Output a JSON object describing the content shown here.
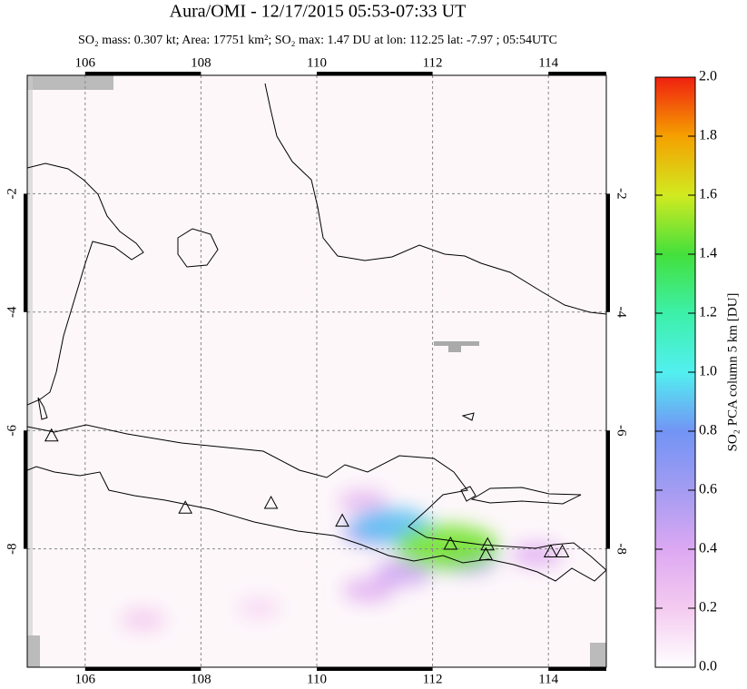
{
  "chart_data": {
    "type": "map",
    "title": "Aura/OMI - 12/17/2015 05:53-07:33 UT",
    "subtitle": "SO₂ mass: 0.307 kt; Area: 17751 km²; SO₂ max: 1.47 DU at lon: 112.25 lat: -7.97 ; 05:54UTC",
    "xlim": [
      105,
      115
    ],
    "ylim": [
      -10,
      0
    ],
    "xticks": [
      106,
      108,
      110,
      112,
      114
    ],
    "yticks": [
      -2,
      -4,
      -6,
      -8
    ],
    "grid": true,
    "volcanoes": {
      "lon": [
        105.42,
        107.73,
        109.21,
        110.44,
        112.31,
        112.95,
        112.92,
        114.04,
        114.24
      ],
      "lat": [
        -6.1,
        -7.32,
        -7.24,
        -7.54,
        -7.93,
        -7.94,
        -8.11,
        -8.06,
        -8.06
      ]
    },
    "so2": {
      "lon": [
        109.0,
        107.0,
        110.8,
        113.8,
        110.9,
        111.5,
        112.6,
        111.0,
        111.3,
        112.25
      ],
      "lat": [
        -9.0,
        -9.2,
        -7.2,
        -8.1,
        -8.7,
        -8.4,
        -8.2,
        -7.7,
        -7.6,
        -7.97
      ],
      "values": [
        0.15,
        0.2,
        0.3,
        0.35,
        0.35,
        0.45,
        0.5,
        0.6,
        0.9,
        1.47
      ]
    },
    "colorbar": {
      "label": "SO₂ PCA column 5 km [DU]",
      "lim": [
        0,
        2
      ],
      "ticks": [
        {
          "value": 0,
          "label": "0.0"
        },
        {
          "value": 0.2,
          "label": "0.2"
        },
        {
          "value": 0.4,
          "label": "0.4"
        },
        {
          "value": 0.6,
          "label": "0.6"
        },
        {
          "value": 0.8,
          "label": "0.8"
        },
        {
          "value": 1,
          "label": "1.0"
        },
        {
          "value": 1.2,
          "label": "1.2"
        },
        {
          "value": 1.4,
          "label": "1.4"
        },
        {
          "value": 1.6,
          "label": "1.6"
        },
        {
          "value": 1.8,
          "label": "1.8"
        },
        {
          "value": 2,
          "label": "2.0"
        }
      ],
      "colors": [
        "#ffffff",
        "#f4caf0",
        "#dca8f2",
        "#a39cf2",
        "#7294f5",
        "#52f0f0",
        "#3cf0a8",
        "#44e03c",
        "#d2ea20",
        "#f5a000",
        "#f02010"
      ]
    }
  }
}
